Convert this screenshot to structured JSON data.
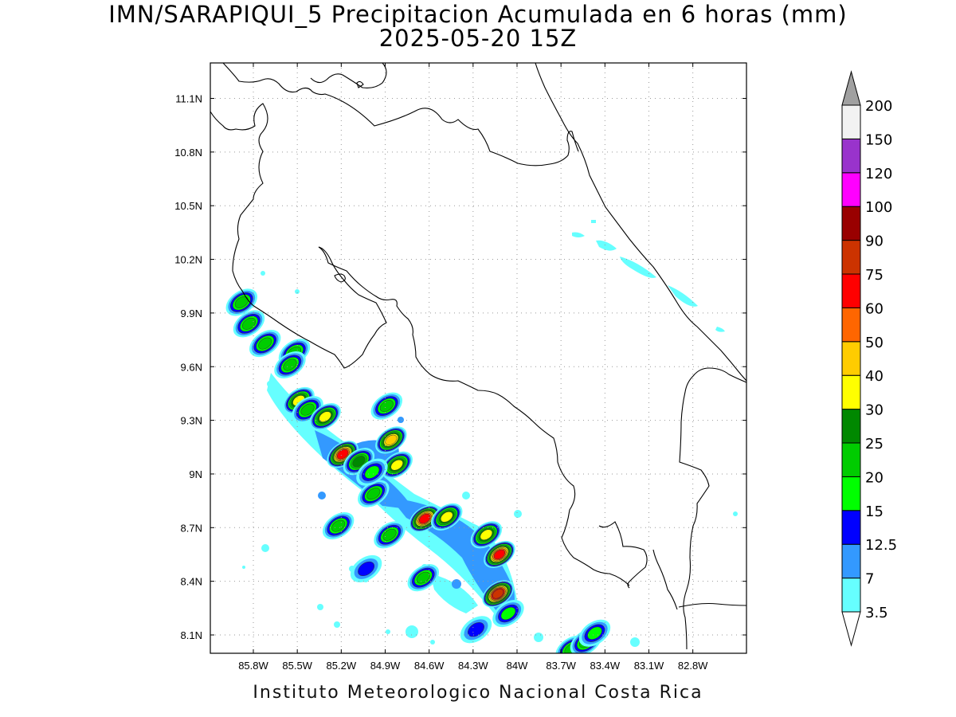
{
  "title": {
    "line1": "IMN/SARAPIQUI_5 Precipitacion Acumulada en 6 horas (mm)",
    "line2": "2025-05-20 15Z"
  },
  "footer": "Instituto Meteorologico Nacional Costa Rica",
  "map": {
    "lat_ticks": [
      {
        "label": "11.1N",
        "value": 11.1
      },
      {
        "label": "10.8N",
        "value": 10.8
      },
      {
        "label": "10.5N",
        "value": 10.5
      },
      {
        "label": "10.2N",
        "value": 10.2
      },
      {
        "label": "9.9N",
        "value": 9.9
      },
      {
        "label": "9.6N",
        "value": 9.6
      },
      {
        "label": "9.3N",
        "value": 9.3
      },
      {
        "label": "9N",
        "value": 9.0
      },
      {
        "label": "8.7N",
        "value": 8.7
      },
      {
        "label": "8.4N",
        "value": 8.4
      },
      {
        "label": "8.1N",
        "value": 8.1
      }
    ],
    "lon_ticks": [
      {
        "label": "85.8W",
        "value": -85.8
      },
      {
        "label": "85.5W",
        "value": -85.5
      },
      {
        "label": "85.2W",
        "value": -85.2
      },
      {
        "label": "84.9W",
        "value": -84.9
      },
      {
        "label": "84.6W",
        "value": -84.6
      },
      {
        "label": "84.3W",
        "value": -84.3
      },
      {
        "label": "84W",
        "value": -84.0
      },
      {
        "label": "83.7W",
        "value": -83.7
      },
      {
        "label": "83.4W",
        "value": -83.4
      },
      {
        "label": "83.1W",
        "value": -83.1
      },
      {
        "label": "82.8W",
        "value": -82.8
      }
    ]
  },
  "colorbar": {
    "levels": [
      "3.5",
      "7",
      "12.5",
      "15",
      "20",
      "25",
      "30",
      "40",
      "50",
      "60",
      "75",
      "90",
      "100",
      "120",
      "150",
      "200"
    ],
    "colors": [
      "#66ffff",
      "#3399ff",
      "#0000ff",
      "#00ff00",
      "#00cc00",
      "#008800",
      "#ffff00",
      "#ffcc00",
      "#ff6600",
      "#ff0000",
      "#cc3300",
      "#990000",
      "#ff00ff",
      "#9933cc",
      "#f2f2f2"
    ],
    "under_color": "#ffffff",
    "over_color": "#a0a0a0"
  },
  "precip_cells": [
    {
      "lon": -85.88,
      "lat": 9.96,
      "v": 22
    },
    {
      "lon": -85.83,
      "lat": 9.84,
      "v": 22
    },
    {
      "lon": -85.72,
      "lat": 9.73,
      "v": 24
    },
    {
      "lon": -85.52,
      "lat": 9.68,
      "v": 24
    },
    {
      "lon": -85.55,
      "lat": 9.61,
      "v": 22
    },
    {
      "lon": -85.49,
      "lat": 9.41,
      "v": 32
    },
    {
      "lon": -85.43,
      "lat": 9.36,
      "v": 22
    },
    {
      "lon": -85.31,
      "lat": 9.32,
      "v": 34
    },
    {
      "lon": -85.19,
      "lat": 9.11,
      "v": 60
    },
    {
      "lon": -85.08,
      "lat": 9.07,
      "v": 26
    },
    {
      "lon": -84.89,
      "lat": 9.38,
      "v": 24
    },
    {
      "lon": -84.86,
      "lat": 9.19,
      "v": 42
    },
    {
      "lon": -84.82,
      "lat": 9.05,
      "v": 34
    },
    {
      "lon": -84.98,
      "lat": 8.89,
      "v": 22
    },
    {
      "lon": -84.99,
      "lat": 9.01,
      "v": 16
    },
    {
      "lon": -84.63,
      "lat": 8.75,
      "v": 60
    },
    {
      "lon": -84.48,
      "lat": 8.76,
      "v": 32
    },
    {
      "lon": -84.21,
      "lat": 8.66,
      "v": 34
    },
    {
      "lon": -84.12,
      "lat": 8.55,
      "v": 62
    },
    {
      "lon": -84.13,
      "lat": 8.33,
      "v": 80
    },
    {
      "lon": -84.06,
      "lat": 8.22,
      "v": 16
    },
    {
      "lon": -84.64,
      "lat": 8.42,
      "v": 22
    },
    {
      "lon": -85.22,
      "lat": 8.71,
      "v": 20
    },
    {
      "lon": -84.87,
      "lat": 8.66,
      "v": 20
    },
    {
      "lon": -85.03,
      "lat": 8.47,
      "v": 13
    },
    {
      "lon": -84.28,
      "lat": 8.13,
      "v": 13
    },
    {
      "lon": -83.63,
      "lat": 8.02,
      "v": 22
    },
    {
      "lon": -83.53,
      "lat": 8.06,
      "v": 22
    },
    {
      "lon": -83.47,
      "lat": 8.11,
      "v": 18
    }
  ]
}
